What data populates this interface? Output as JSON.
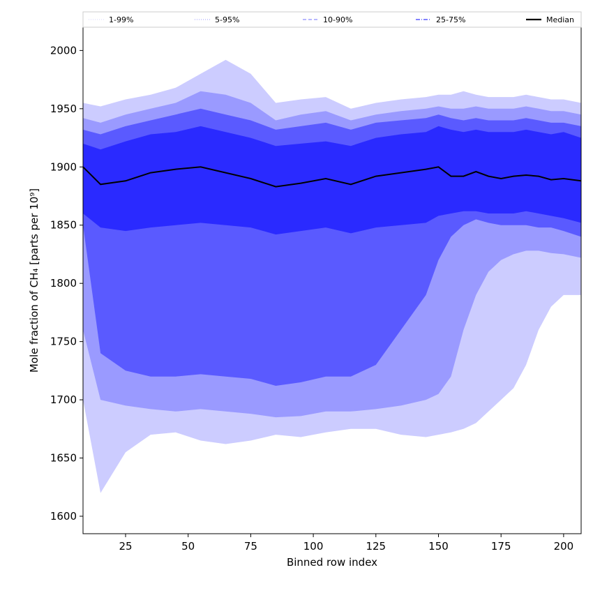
{
  "chart_data": {
    "type": "area",
    "xlabel": "Binned row index",
    "ylabel": "Mole fraction of CH₄ [parts per 10⁹]",
    "xlim": [
      8,
      207
    ],
    "ylim": [
      1585,
      2020
    ],
    "xticks": [
      25,
      50,
      75,
      100,
      125,
      150,
      175,
      200
    ],
    "yticks": [
      1600,
      1650,
      1700,
      1750,
      1800,
      1850,
      1900,
      1950,
      2000
    ],
    "grid": false,
    "legend": {
      "placement": "top",
      "entries": [
        {
          "label": "1-99%",
          "style": "dotted-thin",
          "color": "#c8c8ff"
        },
        {
          "label": "5-95%",
          "style": "dotted",
          "color": "#9a9aff"
        },
        {
          "label": "10-90%",
          "style": "dashed",
          "color": "#8c8cff"
        },
        {
          "label": "25-75%",
          "style": "dashdot",
          "color": "#5a5aff"
        },
        {
          "label": "Median",
          "style": "solid",
          "color": "#000000"
        }
      ]
    },
    "colors": {
      "band_1_99": "#ccccff",
      "band_5_95": "#9a9aff",
      "band_10_90": "#5a5aff",
      "band_25_75": "#2a2aff",
      "median": "#000000"
    },
    "x": [
      8,
      15,
      25,
      35,
      45,
      55,
      65,
      75,
      85,
      95,
      105,
      115,
      125,
      135,
      145,
      150,
      155,
      160,
      165,
      170,
      175,
      180,
      185,
      190,
      195,
      200,
      207
    ],
    "series": [
      {
        "name": "Median",
        "values": [
          1900,
          1885,
          1888,
          1895,
          1898,
          1900,
          1895,
          1890,
          1883,
          1886,
          1890,
          1885,
          1892,
          1895,
          1898,
          1900,
          1892,
          1892,
          1896,
          1892,
          1890,
          1892,
          1893,
          1892,
          1889,
          1890,
          1888
        ]
      },
      {
        "name": "25-75% upper",
        "values": [
          1920,
          1915,
          1922,
          1928,
          1930,
          1935,
          1930,
          1925,
          1918,
          1920,
          1922,
          1918,
          1925,
          1928,
          1930,
          1935,
          1932,
          1930,
          1932,
          1930,
          1930,
          1930,
          1932,
          1930,
          1928,
          1930,
          1925
        ]
      },
      {
        "name": "25-75% lower",
        "values": [
          1860,
          1848,
          1845,
          1848,
          1850,
          1852,
          1850,
          1848,
          1842,
          1845,
          1848,
          1843,
          1848,
          1850,
          1852,
          1858,
          1860,
          1862,
          1862,
          1860,
          1860,
          1860,
          1862,
          1860,
          1858,
          1856,
          1852
        ]
      },
      {
        "name": "10-90% upper",
        "values": [
          1932,
          1928,
          1935,
          1940,
          1945,
          1950,
          1945,
          1940,
          1932,
          1935,
          1938,
          1932,
          1938,
          1940,
          1942,
          1945,
          1942,
          1940,
          1942,
          1940,
          1940,
          1940,
          1942,
          1940,
          1938,
          1938,
          1935
        ]
      },
      {
        "name": "10-90% lower",
        "values": [
          1850,
          1740,
          1725,
          1720,
          1720,
          1722,
          1720,
          1718,
          1712,
          1715,
          1720,
          1720,
          1730,
          1760,
          1790,
          1820,
          1840,
          1850,
          1855,
          1852,
          1850,
          1850,
          1850,
          1848,
          1848,
          1845,
          1840
        ]
      },
      {
        "name": "5-95% upper",
        "values": [
          1942,
          1938,
          1945,
          1950,
          1955,
          1965,
          1962,
          1955,
          1940,
          1945,
          1948,
          1940,
          1945,
          1948,
          1950,
          1952,
          1950,
          1950,
          1952,
          1950,
          1950,
          1950,
          1952,
          1950,
          1948,
          1948,
          1945
        ]
      },
      {
        "name": "5-95% lower",
        "values": [
          1760,
          1700,
          1695,
          1692,
          1690,
          1692,
          1690,
          1688,
          1685,
          1686,
          1690,
          1690,
          1692,
          1695,
          1700,
          1705,
          1720,
          1760,
          1790,
          1810,
          1820,
          1825,
          1828,
          1828,
          1826,
          1825,
          1822
        ]
      },
      {
        "name": "1-99% upper",
        "values": [
          1955,
          1952,
          1958,
          1962,
          1968,
          1980,
          1992,
          1980,
          1955,
          1958,
          1960,
          1950,
          1955,
          1958,
          1960,
          1962,
          1962,
          1965,
          1962,
          1960,
          1960,
          1960,
          1962,
          1960,
          1958,
          1958,
          1955
        ]
      },
      {
        "name": "1-99% lower",
        "values": [
          1700,
          1620,
          1655,
          1670,
          1672,
          1665,
          1662,
          1665,
          1670,
          1668,
          1672,
          1675,
          1675,
          1670,
          1668,
          1670,
          1672,
          1675,
          1680,
          1690,
          1700,
          1710,
          1730,
          1760,
          1780,
          1790,
          1790
        ]
      }
    ]
  }
}
